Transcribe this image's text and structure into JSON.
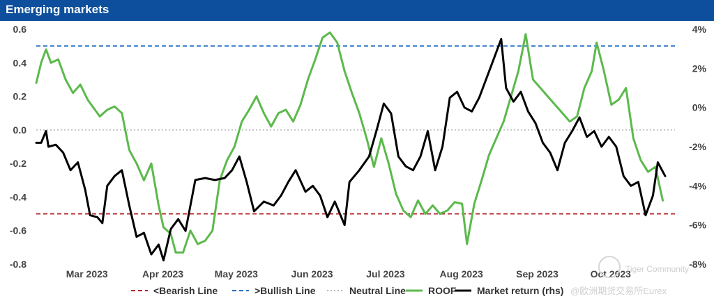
{
  "header": {
    "title": "Emerging markets"
  },
  "watermark": {
    "brand": "Tiger Community",
    "account": "@欧洲期货交易所Eurex"
  },
  "chart_data": {
    "type": "line",
    "title": "Emerging markets",
    "x_range": [
      "2023-02-06",
      "2023-10-25"
    ],
    "x_ticks": [
      {
        "label": "Mar 2023",
        "date": "2023-03-01"
      },
      {
        "label": "Apr 2023",
        "date": "2023-04-01"
      },
      {
        "label": "May 2023",
        "date": "2023-05-01"
      },
      {
        "label": "Jun 2023",
        "date": "2023-06-01"
      },
      {
        "label": "Jul 2023",
        "date": "2023-07-01"
      },
      {
        "label": "Aug 2023",
        "date": "2023-08-01"
      },
      {
        "label": "Sep 2023",
        "date": "2023-09-01"
      },
      {
        "label": "Oct 2023",
        "date": "2023-10-01"
      }
    ],
    "y_left": {
      "ylim": [
        -0.8,
        0.6
      ],
      "ticks": [
        "0.6",
        "0.4",
        "0.2",
        "0.0",
        "-0.2",
        "-0.4",
        "-0.6",
        "-0.8"
      ]
    },
    "y_right": {
      "ylim": [
        -8,
        4
      ],
      "unit": "%",
      "ticks": [
        "4%",
        "2%",
        "0%",
        "-2%",
        "-4%",
        "-6%",
        "-8%"
      ]
    },
    "reference_lines": [
      {
        "name": "<Bearish Line",
        "value": -0.5,
        "color": "#b3282d",
        "style": "dashed"
      },
      {
        "name": ">Bullish Line",
        "value": 0.5,
        "color": "#1f6fc4",
        "style": "dashed"
      },
      {
        "name": "Neutral Line",
        "value": 0.0,
        "color": "#b8b8b8",
        "style": "dotted"
      }
    ],
    "series": [
      {
        "name": "ROOF",
        "axis": "left",
        "color": "#5cb94c",
        "points": [
          [
            "2023-02-06",
            0.28
          ],
          [
            "2023-02-08",
            0.4
          ],
          [
            "2023-02-10",
            0.48
          ],
          [
            "2023-02-12",
            0.4
          ],
          [
            "2023-02-15",
            0.42
          ],
          [
            "2023-02-18",
            0.3
          ],
          [
            "2023-02-21",
            0.22
          ],
          [
            "2023-02-24",
            0.27
          ],
          [
            "2023-02-27",
            0.18
          ],
          [
            "2023-03-01",
            0.14
          ],
          [
            "2023-03-04",
            0.08
          ],
          [
            "2023-03-07",
            0.12
          ],
          [
            "2023-03-10",
            0.14
          ],
          [
            "2023-03-13",
            0.1
          ],
          [
            "2023-03-16",
            -0.12
          ],
          [
            "2023-03-19",
            -0.2
          ],
          [
            "2023-03-22",
            -0.3
          ],
          [
            "2023-03-25",
            -0.2
          ],
          [
            "2023-03-28",
            -0.45
          ],
          [
            "2023-03-30",
            -0.58
          ],
          [
            "2023-04-02",
            -0.62
          ],
          [
            "2023-04-04",
            -0.73
          ],
          [
            "2023-04-07",
            -0.73
          ],
          [
            "2023-04-10",
            -0.6
          ],
          [
            "2023-04-13",
            -0.68
          ],
          [
            "2023-04-16",
            -0.66
          ],
          [
            "2023-04-19",
            -0.6
          ],
          [
            "2023-04-22",
            -0.3
          ],
          [
            "2023-04-25",
            -0.18
          ],
          [
            "2023-04-28",
            -0.1
          ],
          [
            "2023-05-01",
            0.05
          ],
          [
            "2023-05-04",
            0.12
          ],
          [
            "2023-05-07",
            0.2
          ],
          [
            "2023-05-10",
            0.1
          ],
          [
            "2023-05-13",
            0.02
          ],
          [
            "2023-05-16",
            0.1
          ],
          [
            "2023-05-19",
            0.12
          ],
          [
            "2023-05-22",
            0.05
          ],
          [
            "2023-05-25",
            0.15
          ],
          [
            "2023-05-28",
            0.3
          ],
          [
            "2023-05-31",
            0.42
          ],
          [
            "2023-06-03",
            0.55
          ],
          [
            "2023-06-06",
            0.58
          ],
          [
            "2023-06-09",
            0.52
          ],
          [
            "2023-06-12",
            0.35
          ],
          [
            "2023-06-15",
            0.22
          ],
          [
            "2023-06-18",
            0.1
          ],
          [
            "2023-06-21",
            -0.05
          ],
          [
            "2023-06-24",
            -0.22
          ],
          [
            "2023-06-27",
            -0.05
          ],
          [
            "2023-06-30",
            -0.2
          ],
          [
            "2023-07-03",
            -0.38
          ],
          [
            "2023-07-06",
            -0.48
          ],
          [
            "2023-07-09",
            -0.52
          ],
          [
            "2023-07-12",
            -0.42
          ],
          [
            "2023-07-15",
            -0.5
          ],
          [
            "2023-07-18",
            -0.45
          ],
          [
            "2023-07-21",
            -0.5
          ],
          [
            "2023-07-24",
            -0.48
          ],
          [
            "2023-07-27",
            -0.43
          ],
          [
            "2023-07-30",
            -0.44
          ],
          [
            "2023-08-01",
            -0.68
          ],
          [
            "2023-08-04",
            -0.44
          ],
          [
            "2023-08-07",
            -0.3
          ],
          [
            "2023-08-10",
            -0.15
          ],
          [
            "2023-08-13",
            -0.05
          ],
          [
            "2023-08-16",
            0.05
          ],
          [
            "2023-08-19",
            0.2
          ],
          [
            "2023-08-22",
            0.35
          ],
          [
            "2023-08-25",
            0.57
          ],
          [
            "2023-08-28",
            0.3
          ],
          [
            "2023-08-31",
            0.25
          ],
          [
            "2023-09-03",
            0.2
          ],
          [
            "2023-09-06",
            0.15
          ],
          [
            "2023-09-09",
            0.1
          ],
          [
            "2023-09-12",
            0.05
          ],
          [
            "2023-09-15",
            0.08
          ],
          [
            "2023-09-18",
            0.25
          ],
          [
            "2023-09-21",
            0.35
          ],
          [
            "2023-09-23",
            0.52
          ],
          [
            "2023-09-26",
            0.35
          ],
          [
            "2023-09-29",
            0.15
          ],
          [
            "2023-10-02",
            0.18
          ],
          [
            "2023-10-05",
            0.25
          ],
          [
            "2023-10-08",
            -0.05
          ],
          [
            "2023-10-11",
            -0.18
          ],
          [
            "2023-10-14",
            -0.25
          ],
          [
            "2023-10-17",
            -0.22
          ],
          [
            "2023-10-20",
            -0.42
          ]
        ]
      },
      {
        "name": "Market return (rhs)",
        "axis": "right",
        "color": "#000000",
        "points": [
          [
            "2023-02-06",
            -1.8
          ],
          [
            "2023-02-08",
            -1.8
          ],
          [
            "2023-02-10",
            -1.2
          ],
          [
            "2023-02-11",
            -2.0
          ],
          [
            "2023-02-14",
            -1.9
          ],
          [
            "2023-02-17",
            -2.3
          ],
          [
            "2023-02-20",
            -3.2
          ],
          [
            "2023-02-23",
            -2.8
          ],
          [
            "2023-02-26",
            -4.2
          ],
          [
            "2023-02-28",
            -5.5
          ],
          [
            "2023-03-03",
            -5.6
          ],
          [
            "2023-03-05",
            -5.9
          ],
          [
            "2023-03-07",
            -4.0
          ],
          [
            "2023-03-10",
            -3.5
          ],
          [
            "2023-03-13",
            -3.2
          ],
          [
            "2023-03-16",
            -5.0
          ],
          [
            "2023-03-19",
            -6.6
          ],
          [
            "2023-03-22",
            -6.4
          ],
          [
            "2023-03-25",
            -7.5
          ],
          [
            "2023-03-28",
            -7.0
          ],
          [
            "2023-03-30",
            -7.8
          ],
          [
            "2023-04-02",
            -6.2
          ],
          [
            "2023-04-05",
            -5.7
          ],
          [
            "2023-04-08",
            -6.3
          ],
          [
            "2023-04-12",
            -3.7
          ],
          [
            "2023-04-16",
            -3.6
          ],
          [
            "2023-04-20",
            -3.7
          ],
          [
            "2023-04-24",
            -3.6
          ],
          [
            "2023-04-27",
            -3.2
          ],
          [
            "2023-04-30",
            -2.5
          ],
          [
            "2023-05-03",
            -3.8
          ],
          [
            "2023-05-06",
            -5.3
          ],
          [
            "2023-05-10",
            -4.8
          ],
          [
            "2023-05-14",
            -5.0
          ],
          [
            "2023-05-17",
            -4.5
          ],
          [
            "2023-05-20",
            -3.8
          ],
          [
            "2023-05-23",
            -3.2
          ],
          [
            "2023-05-27",
            -4.3
          ],
          [
            "2023-05-30",
            -4.0
          ],
          [
            "2023-06-02",
            -4.5
          ],
          [
            "2023-06-05",
            -5.6
          ],
          [
            "2023-06-08",
            -4.8
          ],
          [
            "2023-06-12",
            -6.0
          ],
          [
            "2023-06-14",
            -3.8
          ],
          [
            "2023-06-18",
            -3.2
          ],
          [
            "2023-06-22",
            -2.5
          ],
          [
            "2023-06-25",
            -1.2
          ],
          [
            "2023-06-28",
            0.2
          ],
          [
            "2023-07-01",
            -0.3
          ],
          [
            "2023-07-04",
            -2.5
          ],
          [
            "2023-07-07",
            -3.0
          ],
          [
            "2023-07-10",
            -3.2
          ],
          [
            "2023-07-13",
            -2.5
          ],
          [
            "2023-07-16",
            -1.2
          ],
          [
            "2023-07-19",
            -3.2
          ],
          [
            "2023-07-22",
            -2.0
          ],
          [
            "2023-07-25",
            0.5
          ],
          [
            "2023-07-28",
            0.8
          ],
          [
            "2023-07-31",
            0.0
          ],
          [
            "2023-08-03",
            -0.2
          ],
          [
            "2023-08-06",
            0.5
          ],
          [
            "2023-08-09",
            1.5
          ],
          [
            "2023-08-12",
            2.5
          ],
          [
            "2023-08-15",
            3.5
          ],
          [
            "2023-08-17",
            1.0
          ],
          [
            "2023-08-20",
            0.3
          ],
          [
            "2023-08-23",
            0.8
          ],
          [
            "2023-08-26",
            -0.2
          ],
          [
            "2023-08-29",
            -0.8
          ],
          [
            "2023-09-01",
            -1.8
          ],
          [
            "2023-09-04",
            -2.3
          ],
          [
            "2023-09-07",
            -3.2
          ],
          [
            "2023-09-10",
            -1.8
          ],
          [
            "2023-09-13",
            -1.2
          ],
          [
            "2023-09-16",
            -0.5
          ],
          [
            "2023-09-19",
            -1.5
          ],
          [
            "2023-09-22",
            -1.2
          ],
          [
            "2023-09-25",
            -2.0
          ],
          [
            "2023-09-28",
            -1.5
          ],
          [
            "2023-10-01",
            -2.0
          ],
          [
            "2023-10-04",
            -3.5
          ],
          [
            "2023-10-07",
            -4.0
          ],
          [
            "2023-10-10",
            -3.8
          ],
          [
            "2023-10-13",
            -5.5
          ],
          [
            "2023-10-16",
            -4.5
          ],
          [
            "2023-10-18",
            -2.8
          ],
          [
            "2023-10-21",
            -3.5
          ]
        ]
      }
    ],
    "legend": {
      "placement": "bottom",
      "entries": [
        {
          "label": "<Bearish Line",
          "color": "#b3282d",
          "style": "dashed"
        },
        {
          "label": ">Bullish Line",
          "color": "#1f6fc4",
          "style": "dashed"
        },
        {
          "label": "Neutral Line",
          "color": "#b8b8b8",
          "style": "dotted"
        },
        {
          "label": "ROOF",
          "color": "#5cb94c",
          "style": "solid"
        },
        {
          "label": "Market return (rhs)",
          "color": "#000000",
          "style": "solid"
        }
      ]
    }
  }
}
